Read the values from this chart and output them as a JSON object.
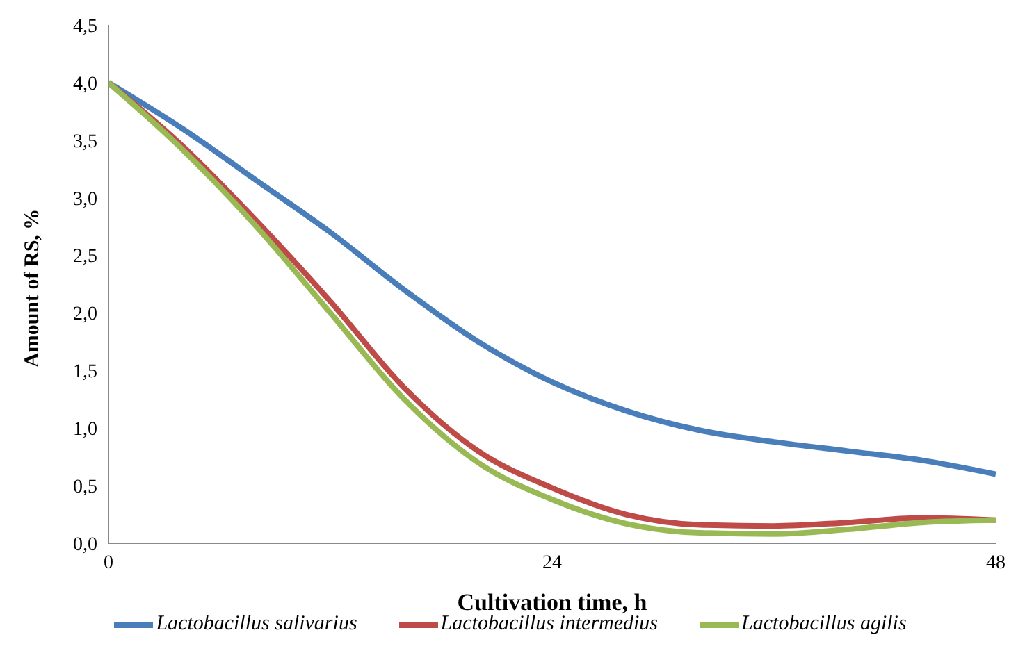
{
  "chart_data": {
    "type": "line",
    "xlabel": "Cultivation time, h",
    "ylabel": "Amount of RS, %",
    "x": [
      0,
      4,
      8,
      12,
      16,
      20,
      24,
      28,
      32,
      36,
      40,
      44,
      48
    ],
    "xlim": [
      0,
      48
    ],
    "xticks": [
      0,
      24,
      48
    ],
    "ylim": [
      0,
      4.5
    ],
    "yticks": [
      {
        "value": 0,
        "label": "0,0"
      },
      {
        "value": 0.5,
        "label": "0,5"
      },
      {
        "value": 1,
        "label": "1,0"
      },
      {
        "value": 1.5,
        "label": "1,5"
      },
      {
        "value": 2,
        "label": "2,0"
      },
      {
        "value": 2.5,
        "label": "2,5"
      },
      {
        "value": 3,
        "label": "3,0"
      },
      {
        "value": 3.5,
        "label": "3,5"
      },
      {
        "value": 4,
        "label": "4,0"
      },
      {
        "value": 4.5,
        "label": "4,5"
      }
    ],
    "grid": false,
    "legend": "bottom",
    "marker": "none",
    "line_style": "solid",
    "series": [
      {
        "name": "Lactobacillus salivarius",
        "color": "#4a7ebb",
        "values": [
          4.0,
          3.6,
          3.15,
          2.7,
          2.2,
          1.75,
          1.4,
          1.15,
          0.98,
          0.88,
          0.8,
          0.72,
          0.6
        ]
      },
      {
        "name": "Lactobacillus intermedius",
        "color": "#be4b48",
        "values": [
          4.0,
          3.45,
          2.8,
          2.1,
          1.35,
          0.8,
          0.48,
          0.25,
          0.16,
          0.15,
          0.18,
          0.22,
          0.2
        ]
      },
      {
        "name": "Lactobacillus agilis",
        "color": "#98b954",
        "values": [
          4.0,
          3.42,
          2.75,
          2.0,
          1.25,
          0.7,
          0.38,
          0.17,
          0.09,
          0.08,
          0.12,
          0.18,
          0.2
        ]
      }
    ]
  }
}
